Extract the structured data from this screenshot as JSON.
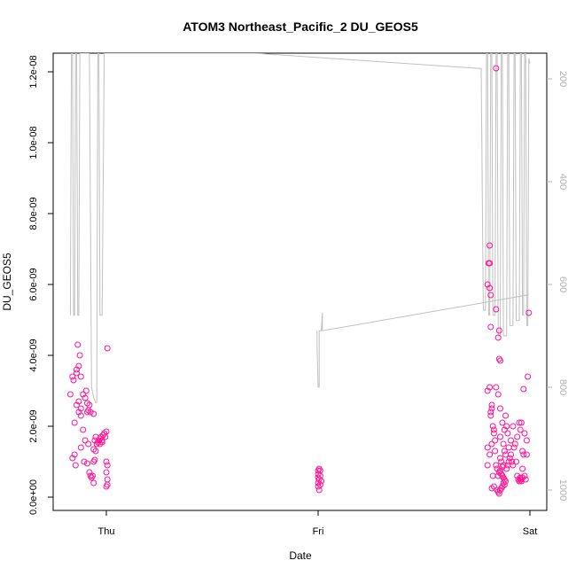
{
  "chart_data": {
    "type": "scatter",
    "title": "ATOM3 Northeast_Pacific_2 DU_GEOS5",
    "xlabel": "Date",
    "ylabel": "DU_GEOS5",
    "x_ticks": [
      "Thu",
      "Fri",
      "Sat"
    ],
    "xlim": [
      -0.2,
      2.0
    ],
    "ylim": [
      0.0,
      1.25e-08
    ],
    "y_ticks": [
      {
        "value": 0.0,
        "label": "0.0e+00"
      },
      {
        "value": 2e-09,
        "label": "2.0e-09"
      },
      {
        "value": 4e-09,
        "label": "4.0e-09"
      },
      {
        "value": 6e-09,
        "label": "6.0e-09"
      },
      {
        "value": 8e-09,
        "label": "8.0e-09"
      },
      {
        "value": 1e-08,
        "label": "1.0e-08"
      },
      {
        "value": 1.2e-08,
        "label": "1.2e-08"
      }
    ],
    "y2_ticks": [
      "200",
      "400",
      "600",
      "800",
      "1000"
    ],
    "y2lim": [
      1020,
      150
    ],
    "point_color": "#ff1493",
    "line_color": "#c0c0c0",
    "series": [
      {
        "values": [
          [
            -0.17,
            2.9
          ],
          [
            -0.16,
            3.4
          ],
          [
            -0.155,
            3.3
          ],
          [
            -0.15,
            2.1
          ],
          [
            -0.16,
            1.1
          ],
          [
            -0.15,
            1.2
          ],
          [
            -0.14,
            3.6
          ],
          [
            -0.14,
            3.5
          ],
          [
            -0.13,
            3.7
          ],
          [
            -0.135,
            4.3
          ],
          [
            -0.125,
            4.0
          ],
          [
            -0.12,
            3.4
          ],
          [
            -0.14,
            2.6
          ],
          [
            -0.13,
            2.7
          ],
          [
            -0.12,
            2.5
          ],
          [
            -0.13,
            2.4
          ],
          [
            -0.12,
            2.3
          ],
          [
            -0.11,
            2.9
          ],
          [
            -0.1,
            2.8
          ],
          [
            -0.095,
            3.0
          ],
          [
            -0.09,
            2.65
          ],
          [
            -0.085,
            2.45
          ],
          [
            -0.08,
            2.6
          ],
          [
            -0.09,
            2.4
          ],
          [
            -0.075,
            2.4
          ],
          [
            -0.06,
            2.35
          ],
          [
            -0.145,
            0.9
          ],
          [
            -0.12,
            1.4
          ],
          [
            -0.11,
            1.9
          ],
          [
            -0.1,
            1.6
          ],
          [
            -0.085,
            1.5
          ],
          [
            -0.105,
            1.0
          ],
          [
            -0.09,
            0.95
          ],
          [
            -0.08,
            0.7
          ],
          [
            -0.075,
            0.6
          ],
          [
            -0.07,
            0.55
          ],
          [
            -0.065,
            0.6
          ],
          [
            -0.06,
            0.4
          ],
          [
            -0.06,
            1.0
          ],
          [
            -0.055,
            1.05
          ],
          [
            -0.06,
            1.35
          ],
          [
            -0.05,
            1.3
          ],
          [
            -0.055,
            1.6
          ],
          [
            -0.05,
            1.7
          ],
          [
            -0.045,
            1.5
          ],
          [
            -0.04,
            1.55
          ],
          [
            -0.035,
            1.6
          ],
          [
            -0.03,
            1.65
          ],
          [
            -0.025,
            1.7
          ],
          [
            -0.02,
            1.6
          ],
          [
            -0.015,
            1.75
          ],
          [
            -0.01,
            1.8
          ],
          [
            -0.005,
            1.7
          ],
          [
            0.0,
            1.85
          ],
          [
            -0.03,
            1.5
          ],
          [
            -0.02,
            1.55
          ],
          [
            0.005,
            4.2
          ],
          [
            0.0,
            1.0
          ],
          [
            0.005,
            0.9
          ],
          [
            0.0,
            0.7
          ],
          [
            0.005,
            0.5
          ],
          [
            0.0,
            0.3
          ],
          [
            0.005,
            0.35
          ],
          [
            1.0,
            0.3
          ],
          [
            1.0,
            0.4
          ],
          [
            1.005,
            0.5
          ],
          [
            1.0,
            0.55
          ],
          [
            1.01,
            0.6
          ],
          [
            1.0,
            0.75
          ],
          [
            1.005,
            0.8
          ],
          [
            1.01,
            0.75
          ],
          [
            1.0,
            0.65
          ],
          [
            1.015,
            0.45
          ],
          [
            1.01,
            0.35
          ],
          [
            1.005,
            0.2
          ],
          [
            1.8,
            1.4
          ],
          [
            1.8,
            0.9
          ],
          [
            1.81,
            3.1
          ],
          [
            1.8,
            3.0
          ],
          [
            1.815,
            2.4
          ],
          [
            1.815,
            2.3
          ],
          [
            1.82,
            2.5
          ],
          [
            1.82,
            2.6
          ],
          [
            1.825,
            2.0
          ],
          [
            1.82,
            1.5
          ],
          [
            1.83,
            1.8
          ],
          [
            1.83,
            1.9
          ],
          [
            1.835,
            1.3
          ],
          [
            1.835,
            1.6
          ],
          [
            1.81,
            1.2
          ],
          [
            1.825,
            0.6
          ],
          [
            1.83,
            0.3
          ],
          [
            1.82,
            0.25
          ],
          [
            1.81,
            7.1
          ],
          [
            1.805,
            6.6
          ],
          [
            1.81,
            6.6
          ],
          [
            1.8,
            6.0
          ],
          [
            1.81,
            5.9
          ],
          [
            1.815,
            5.7
          ],
          [
            1.815,
            4.8
          ],
          [
            1.84,
            5.3
          ],
          [
            1.84,
            3.1
          ],
          [
            1.84,
            12.1
          ],
          [
            1.85,
            4.5
          ],
          [
            1.855,
            4.7
          ],
          [
            1.855,
            3.9
          ],
          [
            1.86,
            3.85
          ],
          [
            1.85,
            2.9
          ],
          [
            1.86,
            2.5
          ],
          [
            1.86,
            1.7
          ],
          [
            1.87,
            2.1
          ],
          [
            1.875,
            1.5
          ],
          [
            1.88,
            1.3
          ],
          [
            1.885,
            1.2
          ],
          [
            1.84,
            0.9
          ],
          [
            1.845,
            0.8
          ],
          [
            1.85,
            0.6
          ],
          [
            1.855,
            0.7
          ],
          [
            1.86,
            0.75
          ],
          [
            1.865,
            0.65
          ],
          [
            1.87,
            0.6
          ],
          [
            1.875,
            0.55
          ],
          [
            1.88,
            0.5
          ],
          [
            1.845,
            0.2
          ],
          [
            1.85,
            0.15
          ],
          [
            1.855,
            0.1
          ],
          [
            1.86,
            0.2
          ],
          [
            1.865,
            0.25
          ],
          [
            1.87,
            0.3
          ],
          [
            1.875,
            0.4
          ],
          [
            1.88,
            0.35
          ],
          [
            1.885,
            0.45
          ],
          [
            1.89,
            0.8
          ],
          [
            1.895,
            0.9
          ],
          [
            1.9,
            1.0
          ],
          [
            1.905,
            1.1
          ],
          [
            1.91,
            1.2
          ],
          [
            1.915,
            1.0
          ],
          [
            1.92,
            0.9
          ],
          [
            1.925,
            1.4
          ],
          [
            1.93,
            1.5
          ],
          [
            1.935,
            1.0
          ],
          [
            1.94,
            0.6
          ],
          [
            1.945,
            0.5
          ],
          [
            1.95,
            0.45
          ],
          [
            1.955,
            0.55
          ],
          [
            1.96,
            0.5
          ],
          [
            1.965,
            0.8
          ],
          [
            1.97,
            1.2
          ],
          [
            1.975,
            0.6
          ],
          [
            1.98,
            0.5
          ],
          [
            1.985,
            1.6
          ],
          [
            1.99,
            3.4
          ],
          [
            1.995,
            5.2
          ],
          [
            1.985,
            1.2
          ],
          [
            1.975,
            1.8
          ],
          [
            1.97,
            3.05
          ],
          [
            1.965,
            1.3
          ],
          [
            1.96,
            2.1
          ],
          [
            1.955,
            1.9
          ],
          [
            1.95,
            2.1
          ],
          [
            1.94,
            1.7
          ],
          [
            1.92,
            2.0
          ],
          [
            1.91,
            1.6
          ],
          [
            1.9,
            1.4
          ],
          [
            1.895,
            1.8
          ],
          [
            1.89,
            2.0
          ],
          [
            1.885,
            2.3
          ],
          [
            1.88,
            1.9
          ],
          [
            1.875,
            0.9
          ],
          [
            1.87,
            0.85
          ],
          [
            1.865,
            1.0
          ],
          [
            1.86,
            1.1
          ],
          [
            1.955,
            0.5
          ],
          [
            1.96,
            0.45
          ],
          [
            1.965,
            0.55
          ]
        ]
      }
    ],
    "profile_line": [
      [
        -0.17,
        660
      ],
      [
        -0.165,
        150
      ],
      [
        -0.16,
        150
      ],
      [
        -0.155,
        660
      ],
      [
        -0.15,
        660
      ],
      [
        -0.145,
        150
      ],
      [
        -0.14,
        150
      ],
      [
        -0.135,
        660
      ],
      [
        -0.13,
        660
      ],
      [
        -0.125,
        150
      ],
      [
        -0.08,
        150
      ],
      [
        -0.07,
        800
      ],
      [
        -0.06,
        820
      ],
      [
        -0.05,
        830
      ],
      [
        -0.045,
        830
      ],
      [
        -0.04,
        150
      ],
      [
        -0.035,
        150
      ],
      [
        -0.03,
        660
      ],
      [
        -0.02,
        660
      ],
      [
        -0.01,
        150
      ],
      [
        0.7,
        150
      ],
      [
        1.77,
        180
      ],
      [
        1.78,
        650
      ],
      [
        1.79,
        650
      ],
      [
        1.795,
        150
      ],
      [
        1.8,
        150
      ],
      [
        1.805,
        660
      ],
      [
        1.81,
        660
      ],
      [
        1.815,
        150
      ],
      [
        1.82,
        150
      ],
      [
        1.825,
        660
      ],
      [
        1.835,
        660
      ],
      [
        1.84,
        150
      ],
      [
        1.845,
        150
      ],
      [
        1.85,
        700
      ],
      [
        1.86,
        700
      ],
      [
        1.865,
        150
      ],
      [
        1.87,
        150
      ],
      [
        1.875,
        700
      ],
      [
        1.89,
        700
      ],
      [
        1.895,
        150
      ],
      [
        1.9,
        150
      ],
      [
        1.905,
        680
      ],
      [
        1.92,
        680
      ],
      [
        1.925,
        150
      ],
      [
        1.93,
        150
      ],
      [
        1.935,
        670
      ],
      [
        1.95,
        670
      ],
      [
        1.955,
        150
      ],
      [
        1.96,
        150
      ],
      [
        1.965,
        660
      ],
      [
        1.97,
        660
      ],
      [
        1.975,
        150
      ],
      [
        1.98,
        150
      ],
      [
        1.985,
        680
      ],
      [
        1.99,
        680
      ],
      [
        1.995,
        160
      ],
      [
        2.0,
        170
      ]
    ],
    "profile_line_fri": [
      [
        1.0,
        800
      ],
      [
        1.005,
        800
      ],
      [
        1.005,
        690
      ],
      [
        1.015,
        690
      ],
      [
        1.02,
        655
      ],
      [
        1.02,
        690
      ],
      [
        1.995,
        620
      ]
    ],
    "profile_line_fri_start": [
      [
        0.995,
        690
      ],
      [
        0.995,
        720
      ],
      [
        1.0,
        800
      ]
    ]
  }
}
